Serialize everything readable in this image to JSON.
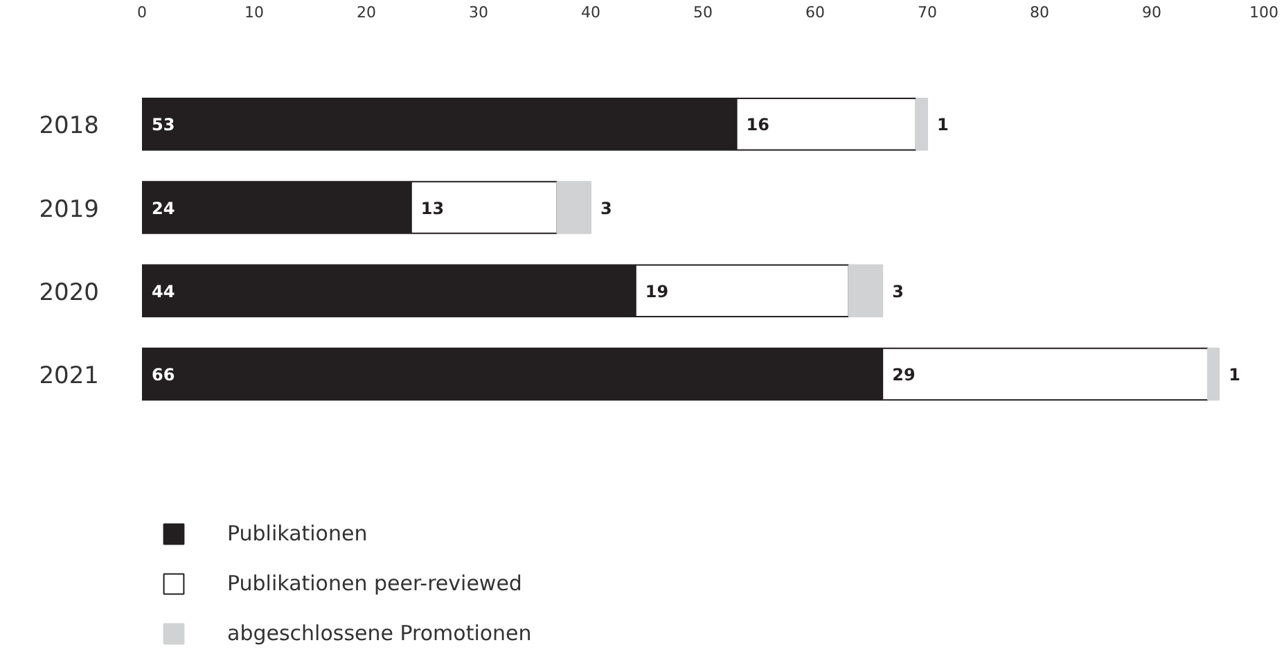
{
  "chart_data": {
    "type": "bar",
    "orientation": "horizontal",
    "stacked": true,
    "categories": [
      "2018",
      "2019",
      "2020",
      "2021"
    ],
    "series": [
      {
        "name": "Publikationen",
        "color": "#231f20",
        "values": [
          53,
          24,
          44,
          66
        ]
      },
      {
        "name": "Publikationen peer-reviewed",
        "color": "#ffffff",
        "values": [
          16,
          13,
          19,
          29
        ]
      },
      {
        "name": "abgeschlossene Promotionen",
        "color": "#d1d2d4",
        "values": [
          1,
          3,
          3,
          1
        ]
      }
    ],
    "xlim": [
      0,
      100
    ],
    "xticks": [
      0,
      10,
      20,
      30,
      40,
      50,
      60,
      70,
      80,
      90,
      100
    ],
    "data_labels": true,
    "grid": false,
    "legend": "bottom left"
  }
}
